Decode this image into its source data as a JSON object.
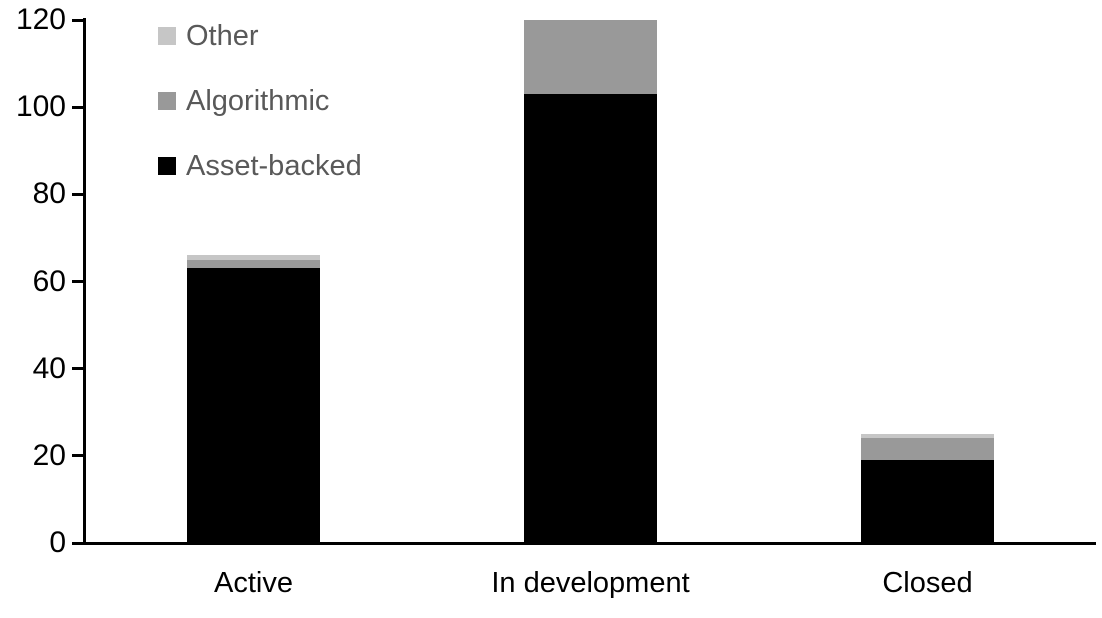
{
  "chart_data": {
    "type": "bar",
    "stacked": true,
    "title": "",
    "xlabel": "",
    "ylabel": "",
    "categories": [
      "Active",
      "In development",
      "Closed"
    ],
    "series": [
      {
        "name": "Asset-backed",
        "color": "#000000",
        "values": [
          63,
          103,
          19
        ]
      },
      {
        "name": "Algorithmic",
        "color": "#999999",
        "values": [
          2,
          17,
          5
        ]
      },
      {
        "name": "Other",
        "color": "#c6c6c6",
        "values": [
          1,
          0,
          1
        ]
      }
    ],
    "ylim": [
      0,
      120
    ],
    "yticks": [
      0,
      20,
      40,
      60,
      80,
      100,
      120
    ],
    "grid": false,
    "legend": {
      "position": "top-left",
      "entries": [
        {
          "label": "Other",
          "color": "#c6c6c6"
        },
        {
          "label": "Algorithmic",
          "color": "#999999"
        },
        {
          "label": "Asset-backed",
          "color": "#000000"
        }
      ]
    }
  },
  "styles": {
    "background": "#ffffff",
    "axis_color": "#000000",
    "tick_label_color": "#000000",
    "category_label_color": "#000000",
    "legend_text_color": "#595959"
  }
}
